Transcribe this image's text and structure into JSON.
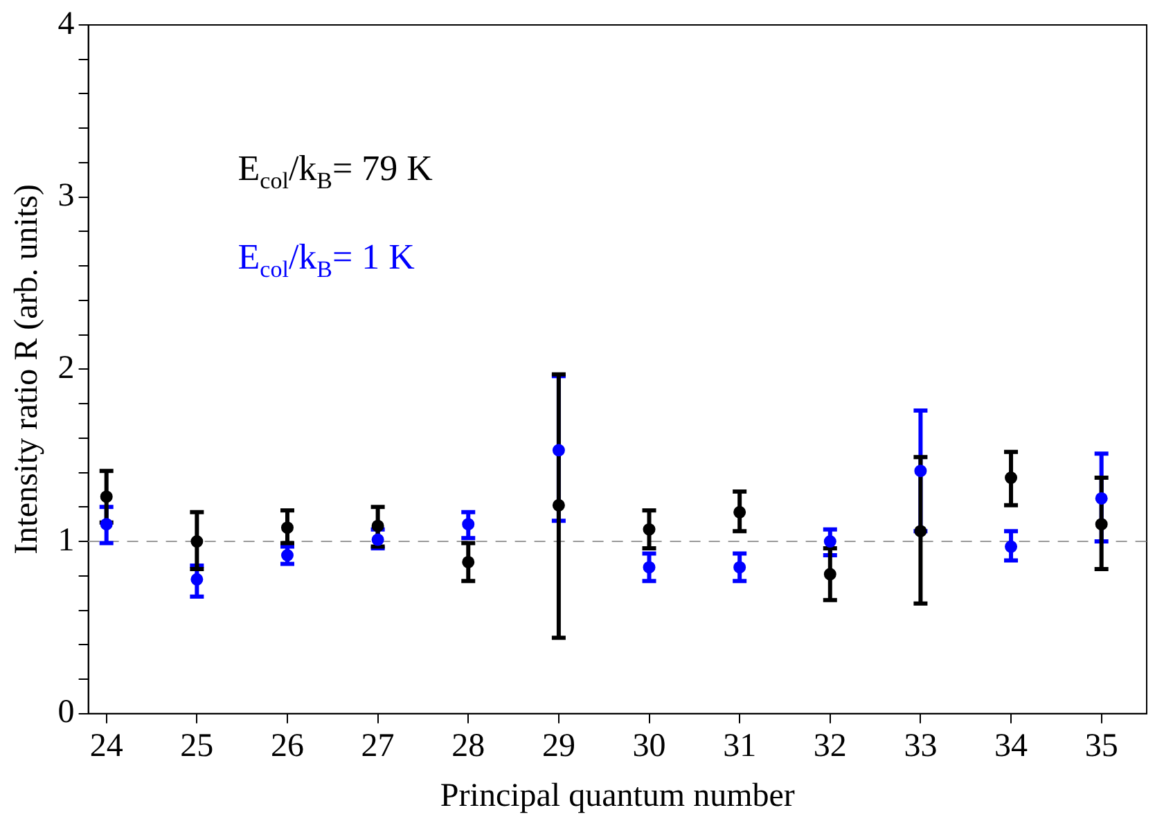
{
  "chart_data": {
    "type": "scatter",
    "xlabel": "Principal quantum number",
    "ylabel": "Intensity ratio R (arb. units)",
    "x": [
      24,
      25,
      26,
      27,
      28,
      29,
      30,
      31,
      32,
      33,
      34,
      35
    ],
    "series": [
      {
        "name": "E$_{col}$/k$_{B}$= 79 K",
        "color": "#000000",
        "values": [
          1.26,
          1.0,
          1.08,
          1.09,
          0.88,
          1.21,
          1.07,
          1.17,
          0.81,
          1.06,
          1.37,
          1.1
        ],
        "errors": [
          [
            1.11,
            1.41
          ],
          [
            0.84,
            1.17
          ],
          [
            0.99,
            1.18
          ],
          [
            0.97,
            1.2
          ],
          [
            0.77,
            0.99
          ],
          [
            0.44,
            1.97
          ],
          [
            0.96,
            1.18
          ],
          [
            1.06,
            1.29
          ],
          [
            0.66,
            0.96
          ],
          [
            0.64,
            1.49
          ],
          [
            1.21,
            1.52
          ],
          [
            0.84,
            1.37
          ]
        ]
      },
      {
        "name": "E$_{col}$/k$_{B}$= 1 K",
        "color": "#0000ff",
        "values": [
          1.1,
          0.78,
          0.92,
          1.01,
          1.1,
          1.53,
          0.85,
          0.85,
          1.0,
          1.41,
          0.97,
          1.25
        ],
        "errors": [
          [
            0.99,
            1.2
          ],
          [
            0.68,
            0.86
          ],
          [
            0.87,
            0.97
          ],
          [
            0.96,
            1.07
          ],
          [
            1.02,
            1.17
          ],
          [
            1.12,
            1.96
          ],
          [
            0.77,
            0.93
          ],
          [
            0.77,
            0.93
          ],
          [
            0.92,
            1.07
          ],
          [
            1.06,
            1.76
          ],
          [
            0.89,
            1.06
          ],
          [
            1.0,
            1.51
          ]
        ]
      }
    ],
    "xlim": [
      23.8,
      35.5
    ],
    "xticks": [
      24,
      25,
      26,
      27,
      28,
      29,
      30,
      31,
      32,
      33,
      34,
      35
    ],
    "ylim": [
      0,
      4
    ],
    "yticks": [
      0,
      {
        "value": 0.2,
        "label": null
      },
      {
        "value": 0.4,
        "label": null
      },
      {
        "value": 0.6,
        "label": null
      },
      {
        "value": 0.8,
        "label": null
      },
      1,
      {
        "value": 1.2,
        "label": null
      },
      {
        "value": 1.4,
        "label": null
      },
      {
        "value": 1.6,
        "label": null
      },
      {
        "value": 1.8,
        "label": null
      },
      2,
      {
        "value": 2.2,
        "label": null
      },
      {
        "value": 2.4,
        "label": null
      },
      {
        "value": 2.6,
        "label": null
      },
      {
        "value": 2.8,
        "label": null
      },
      3,
      {
        "value": 3.2,
        "label": null
      },
      {
        "value": 3.4,
        "label": null
      },
      {
        "value": 3.6,
        "label": null
      },
      {
        "value": 3.8,
        "label": null
      },
      4
    ],
    "ref_lines": [
      {
        "axis": "y",
        "value": 1,
        "color": "#999999",
        "line_style": "dashed"
      }
    ],
    "grid": false,
    "legend": "top left",
    "marker": "circle"
  }
}
